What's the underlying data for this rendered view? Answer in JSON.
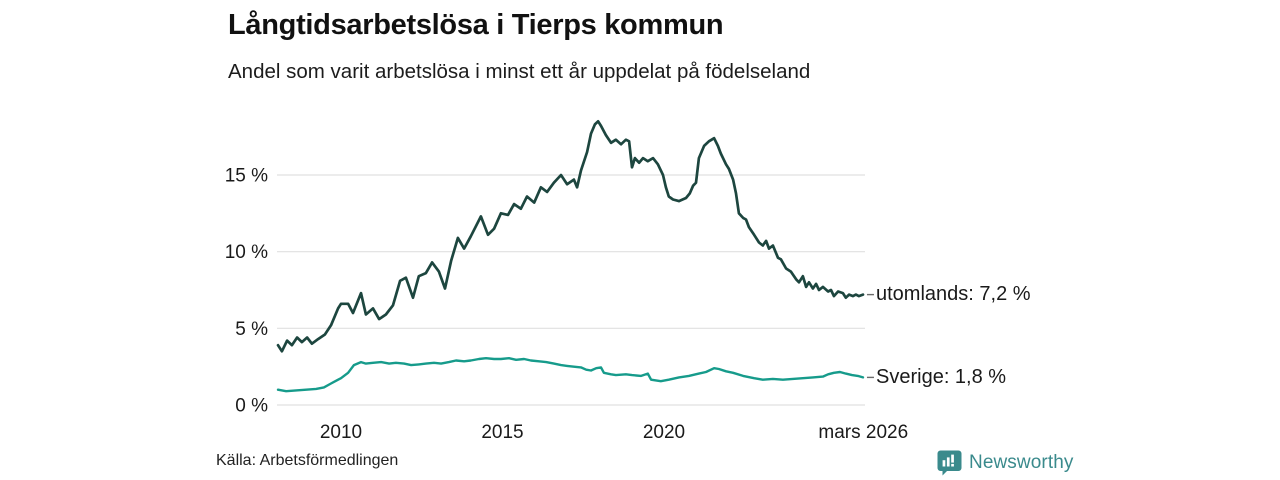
{
  "header": {
    "title": "Långtidsarbetslösa i Tierps kommun",
    "subtitle": "Andel som varit arbetslösa i minst ett år uppdelat på födelseland"
  },
  "footer": {
    "source": "Källa: Arbetsförmedlingen",
    "brand": "Newsworthy",
    "brand_color": "#3a8a8c"
  },
  "chart_data": {
    "type": "line",
    "title": "Långtidsarbetslösa i Tierps kommun",
    "subtitle": "Andel som varit arbetslösa i minst ett år uppdelat på födelseland",
    "xlabel": "",
    "ylabel": "",
    "grid": true,
    "legend_position": "end-of-line-labels",
    "x_range": [
      2008.05,
      2026.25
    ],
    "ylim": [
      0,
      19
    ],
    "y_ticks": [
      {
        "value": 0,
        "label": "0 %"
      },
      {
        "value": 5,
        "label": "5 %"
      },
      {
        "value": 10,
        "label": "10 %"
      },
      {
        "value": 15,
        "label": "15 %"
      }
    ],
    "x_ticks": [
      {
        "value": 2010,
        "label": "2010"
      },
      {
        "value": 2015,
        "label": "2015"
      },
      {
        "value": 2020,
        "label": "2020"
      },
      {
        "value": 2026.17,
        "label": "mars 2026"
      }
    ],
    "series": [
      {
        "name": "utomlands",
        "color": "#1d463f",
        "end_label": "utomlands: 7,2 %",
        "latest_value": 7.2,
        "points": [
          [
            2008.05,
            3.9
          ],
          [
            2008.17,
            3.5
          ],
          [
            2008.33,
            4.2
          ],
          [
            2008.48,
            3.9
          ],
          [
            2008.64,
            4.4
          ],
          [
            2008.79,
            4.1
          ],
          [
            2008.95,
            4.4
          ],
          [
            2009.1,
            4.0
          ],
          [
            2009.29,
            4.3
          ],
          [
            2009.5,
            4.6
          ],
          [
            2009.69,
            5.2
          ],
          [
            2009.91,
            6.3
          ],
          [
            2010.0,
            6.6
          ],
          [
            2010.22,
            6.6
          ],
          [
            2010.37,
            6.0
          ],
          [
            2010.62,
            7.3
          ],
          [
            2010.77,
            5.9
          ],
          [
            2010.99,
            6.3
          ],
          [
            2011.18,
            5.6
          ],
          [
            2011.39,
            5.9
          ],
          [
            2011.61,
            6.5
          ],
          [
            2011.83,
            8.1
          ],
          [
            2012.01,
            8.3
          ],
          [
            2012.23,
            7.0
          ],
          [
            2012.41,
            8.4
          ],
          [
            2012.63,
            8.6
          ],
          [
            2012.82,
            9.3
          ],
          [
            2013.03,
            8.7
          ],
          [
            2013.22,
            7.6
          ],
          [
            2013.41,
            9.4
          ],
          [
            2013.62,
            10.9
          ],
          [
            2013.81,
            10.2
          ],
          [
            2014.02,
            11.0
          ],
          [
            2014.33,
            12.3
          ],
          [
            2014.55,
            11.1
          ],
          [
            2014.74,
            11.5
          ],
          [
            2014.95,
            12.5
          ],
          [
            2015.17,
            12.4
          ],
          [
            2015.36,
            13.1
          ],
          [
            2015.57,
            12.8
          ],
          [
            2015.76,
            13.6
          ],
          [
            2015.98,
            13.2
          ],
          [
            2016.19,
            14.2
          ],
          [
            2016.38,
            13.9
          ],
          [
            2016.59,
            14.5
          ],
          [
            2016.81,
            15.0
          ],
          [
            2017.0,
            14.4
          ],
          [
            2017.21,
            14.7
          ],
          [
            2017.31,
            14.2
          ],
          [
            2017.43,
            15.3
          ],
          [
            2017.62,
            16.5
          ],
          [
            2017.74,
            17.7
          ],
          [
            2017.86,
            18.3
          ],
          [
            2017.96,
            18.5
          ],
          [
            2018.05,
            18.2
          ],
          [
            2018.2,
            17.6
          ],
          [
            2018.36,
            17.1
          ],
          [
            2018.51,
            17.3
          ],
          [
            2018.67,
            17.0
          ],
          [
            2018.82,
            17.3
          ],
          [
            2018.92,
            17.2
          ],
          [
            2019.01,
            15.5
          ],
          [
            2019.1,
            16.1
          ],
          [
            2019.23,
            15.8
          ],
          [
            2019.35,
            16.1
          ],
          [
            2019.5,
            15.9
          ],
          [
            2019.66,
            16.1
          ],
          [
            2019.81,
            15.7
          ],
          [
            2019.97,
            15.0
          ],
          [
            2020.06,
            14.2
          ],
          [
            2020.15,
            13.6
          ],
          [
            2020.28,
            13.4
          ],
          [
            2020.46,
            13.3
          ],
          [
            2020.68,
            13.5
          ],
          [
            2020.8,
            13.8
          ],
          [
            2020.9,
            14.3
          ],
          [
            2020.99,
            14.5
          ],
          [
            2021.08,
            16.1
          ],
          [
            2021.24,
            16.9
          ],
          [
            2021.39,
            17.2
          ],
          [
            2021.55,
            17.4
          ],
          [
            2021.67,
            16.9
          ],
          [
            2021.76,
            16.4
          ],
          [
            2021.92,
            15.7
          ],
          [
            2022.01,
            15.4
          ],
          [
            2022.14,
            14.7
          ],
          [
            2022.23,
            13.8
          ],
          [
            2022.32,
            12.5
          ],
          [
            2022.45,
            12.2
          ],
          [
            2022.54,
            12.1
          ],
          [
            2022.63,
            11.6
          ],
          [
            2022.79,
            11.1
          ],
          [
            2022.94,
            10.6
          ],
          [
            2023.06,
            10.4
          ],
          [
            2023.16,
            10.7
          ],
          [
            2023.25,
            10.2
          ],
          [
            2023.37,
            10.4
          ],
          [
            2023.53,
            9.6
          ],
          [
            2023.62,
            9.5
          ],
          [
            2023.78,
            8.9
          ],
          [
            2023.93,
            8.7
          ],
          [
            2024.09,
            8.2
          ],
          [
            2024.18,
            8.0
          ],
          [
            2024.3,
            8.4
          ],
          [
            2024.4,
            7.7
          ],
          [
            2024.49,
            8.0
          ],
          [
            2024.61,
            7.6
          ],
          [
            2024.71,
            7.9
          ],
          [
            2024.8,
            7.5
          ],
          [
            2024.92,
            7.7
          ],
          [
            2025.08,
            7.4
          ],
          [
            2025.17,
            7.5
          ],
          [
            2025.26,
            7.1
          ],
          [
            2025.39,
            7.4
          ],
          [
            2025.54,
            7.3
          ],
          [
            2025.63,
            7.0
          ],
          [
            2025.73,
            7.2
          ],
          [
            2025.85,
            7.1
          ],
          [
            2025.94,
            7.2
          ],
          [
            2026.03,
            7.1
          ],
          [
            2026.16,
            7.2
          ]
        ]
      },
      {
        "name": "Sverige",
        "color": "#169b8b",
        "end_label": "Sverige: 1,8 %",
        "latest_value": 1.8,
        "points": [
          [
            2008.05,
            1.0
          ],
          [
            2008.3,
            0.9
          ],
          [
            2008.61,
            0.95
          ],
          [
            2008.92,
            1.0
          ],
          [
            2009.23,
            1.05
          ],
          [
            2009.47,
            1.15
          ],
          [
            2009.69,
            1.4
          ],
          [
            2009.91,
            1.65
          ],
          [
            2010.0,
            1.75
          ],
          [
            2010.22,
            2.1
          ],
          [
            2010.4,
            2.6
          ],
          [
            2010.62,
            2.8
          ],
          [
            2010.77,
            2.7
          ],
          [
            2010.99,
            2.75
          ],
          [
            2011.24,
            2.8
          ],
          [
            2011.49,
            2.7
          ],
          [
            2011.7,
            2.75
          ],
          [
            2011.95,
            2.7
          ],
          [
            2012.17,
            2.6
          ],
          [
            2012.41,
            2.65
          ],
          [
            2012.63,
            2.7
          ],
          [
            2012.88,
            2.75
          ],
          [
            2013.1,
            2.7
          ],
          [
            2013.34,
            2.8
          ],
          [
            2013.56,
            2.9
          ],
          [
            2013.81,
            2.85
          ],
          [
            2014.02,
            2.9
          ],
          [
            2014.27,
            3.0
          ],
          [
            2014.49,
            3.05
          ],
          [
            2014.74,
            3.0
          ],
          [
            2014.95,
            3.0
          ],
          [
            2015.2,
            3.05
          ],
          [
            2015.42,
            2.95
          ],
          [
            2015.67,
            3.0
          ],
          [
            2015.88,
            2.9
          ],
          [
            2016.13,
            2.85
          ],
          [
            2016.35,
            2.8
          ],
          [
            2016.59,
            2.7
          ],
          [
            2016.81,
            2.6
          ],
          [
            2017.0,
            2.55
          ],
          [
            2017.21,
            2.5
          ],
          [
            2017.43,
            2.45
          ],
          [
            2017.59,
            2.3
          ],
          [
            2017.74,
            2.25
          ],
          [
            2017.9,
            2.4
          ],
          [
            2018.05,
            2.45
          ],
          [
            2018.14,
            2.1
          ],
          [
            2018.36,
            2.0
          ],
          [
            2018.51,
            1.95
          ],
          [
            2018.82,
            2.0
          ],
          [
            2019.01,
            1.95
          ],
          [
            2019.29,
            1.9
          ],
          [
            2019.5,
            2.05
          ],
          [
            2019.6,
            1.65
          ],
          [
            2019.9,
            1.55
          ],
          [
            2020.15,
            1.65
          ],
          [
            2020.46,
            1.8
          ],
          [
            2020.77,
            1.9
          ],
          [
            2021.08,
            2.05
          ],
          [
            2021.3,
            2.15
          ],
          [
            2021.55,
            2.4
          ],
          [
            2021.7,
            2.35
          ],
          [
            2021.92,
            2.2
          ],
          [
            2022.14,
            2.1
          ],
          [
            2022.45,
            1.9
          ],
          [
            2022.79,
            1.75
          ],
          [
            2023.06,
            1.65
          ],
          [
            2023.37,
            1.7
          ],
          [
            2023.68,
            1.65
          ],
          [
            2023.99,
            1.7
          ],
          [
            2024.3,
            1.75
          ],
          [
            2024.61,
            1.8
          ],
          [
            2024.92,
            1.85
          ],
          [
            2025.08,
            2.0
          ],
          [
            2025.26,
            2.1
          ],
          [
            2025.45,
            2.15
          ],
          [
            2025.63,
            2.05
          ],
          [
            2025.82,
            1.95
          ],
          [
            2026.0,
            1.9
          ],
          [
            2026.16,
            1.8
          ]
        ]
      }
    ]
  }
}
